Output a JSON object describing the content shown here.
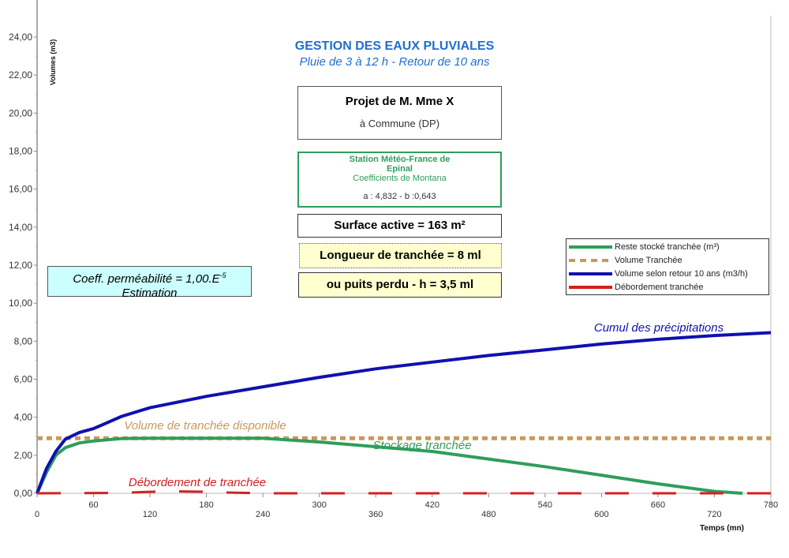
{
  "header": {
    "title": "GESTION DES EAUX PLUVIALES",
    "subtitle": "Pluie de 3 à 12 h - Retour de 10 ans"
  },
  "project": {
    "name": "Projet de M. Mme X",
    "location": "à Commune (DP)"
  },
  "station": {
    "line1": "Station Météo-France de",
    "line2": "Epinal",
    "line3": "Coefficients de Montana",
    "coefficients": "a : 4,832 - b :0,643"
  },
  "surface": "Surface active = 163 m²",
  "longueur": "Longueur de tranchée = 8 ml",
  "puits": "ou puits perdu - h = 3,5 ml",
  "permeability": {
    "line1": "Coeff. perméabilité = 1,00.E",
    "exponent": "-5",
    "line2": "Estimation"
  },
  "colors": {
    "green": "#2e9e5b",
    "orange": "#c8995a",
    "blue": "#1010b0",
    "red": "#d42020",
    "title": "#1f6fd0",
    "cyan": "#ccffff",
    "yellow": "#ffffd0"
  },
  "chart_data": {
    "type": "line",
    "xlabel": "Temps (mn)",
    "ylabel": "Volumes (m3)",
    "xlim": [
      0,
      780
    ],
    "ylim": [
      0,
      24
    ],
    "xticks": [
      "0",
      "60",
      "120",
      "180",
      "240",
      "300",
      "360",
      "420",
      "480",
      "540",
      "600",
      "660",
      "720",
      "780"
    ],
    "yticks": [
      "0,00",
      "2,00",
      "4,00",
      "6,00",
      "8,00",
      "10,00",
      "12,00",
      "14,00",
      "16,00",
      "18,00",
      "20,00",
      "22,00",
      "24,00"
    ],
    "legend_position": "right",
    "series": [
      {
        "name": "Reste stocké tranchée (m³)",
        "color": "#2e9e5b",
        "style": "solid",
        "x": [
          0,
          10,
          20,
          30,
          45,
          60,
          90,
          120,
          180,
          240,
          300,
          360,
          420,
          480,
          540,
          600,
          660,
          720,
          750
        ],
        "y": [
          0,
          1.1,
          2.0,
          2.4,
          2.65,
          2.75,
          2.88,
          2.9,
          2.9,
          2.9,
          2.7,
          2.45,
          2.2,
          1.8,
          1.4,
          0.95,
          0.5,
          0.1,
          0
        ]
      },
      {
        "name": "Volume Tranchée",
        "color": "#c8995a",
        "style": "dotted",
        "x": [
          0,
          780
        ],
        "y": [
          2.9,
          2.9
        ]
      },
      {
        "name": "Volume selon retour 10 ans (m3/h)",
        "color": "#1010b0",
        "style": "solid",
        "x": [
          0,
          10,
          20,
          30,
          45,
          60,
          90,
          120,
          180,
          240,
          300,
          360,
          420,
          480,
          540,
          600,
          660,
          720,
          780
        ],
        "y": [
          0,
          1.3,
          2.2,
          2.85,
          3.2,
          3.4,
          4.05,
          4.5,
          5.1,
          5.6,
          6.1,
          6.55,
          6.9,
          7.25,
          7.55,
          7.85,
          8.1,
          8.3,
          8.45
        ]
      },
      {
        "name": "Débordement tranchée",
        "color": "#d42020",
        "style": "dashed",
        "x": [
          0,
          90,
          120,
          150,
          180,
          210,
          240,
          780
        ],
        "y": [
          0,
          0.02,
          0.08,
          0.1,
          0.08,
          0.03,
          0,
          0
        ]
      }
    ],
    "annotations": [
      {
        "text": "Cumul des précipitations",
        "color": "#1010b0"
      },
      {
        "text": "Volume de tranchée disponible",
        "color": "#c8995a"
      },
      {
        "text": "Stockage tranchée",
        "color": "#2e9e5b"
      },
      {
        "text": "Débordement de tranchée",
        "color": "#d42020"
      }
    ]
  }
}
